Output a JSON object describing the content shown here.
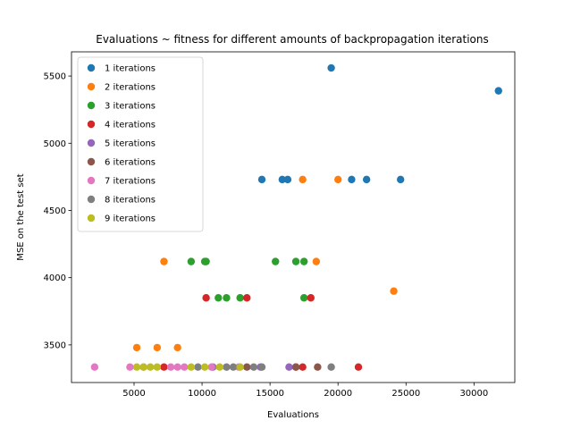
{
  "chart_data": {
    "type": "scatter",
    "title": "Evaluations ~ fitness for different amounts of backpropagation iterations",
    "xlabel": "Evaluations",
    "ylabel": "MSE on the test set",
    "xlim": [
      400,
      33000
    ],
    "ylim": [
      3220,
      5680
    ],
    "xticks": [
      5000,
      10000,
      15000,
      20000,
      25000,
      30000
    ],
    "yticks": [
      3500,
      4000,
      4500,
      5000,
      5500
    ],
    "grid": false,
    "legend_position": "top-left",
    "series": [
      {
        "name": "1 iterations",
        "color": "#1f77b4",
        "points": [
          [
            14400,
            4730
          ],
          [
            15900,
            4730
          ],
          [
            16300,
            4730
          ],
          [
            19500,
            5560
          ],
          [
            21000,
            4730
          ],
          [
            22100,
            4730
          ],
          [
            24600,
            4730
          ],
          [
            31800,
            5390
          ]
        ]
      },
      {
        "name": "2 iterations",
        "color": "#ff7f0e",
        "points": [
          [
            5200,
            3480
          ],
          [
            6700,
            3480
          ],
          [
            8200,
            3480
          ],
          [
            7200,
            4120
          ],
          [
            17400,
            4730
          ],
          [
            20000,
            4730
          ],
          [
            18400,
            4120
          ],
          [
            24100,
            3900
          ]
        ]
      },
      {
        "name": "3 iterations",
        "color": "#2ca02c",
        "points": [
          [
            9200,
            4120
          ],
          [
            10200,
            4120
          ],
          [
            10300,
            4120
          ],
          [
            11200,
            3850
          ],
          [
            11800,
            3850
          ],
          [
            12800,
            3850
          ],
          [
            15400,
            4120
          ],
          [
            16900,
            4120
          ],
          [
            17500,
            4120
          ],
          [
            17500,
            3850
          ]
        ]
      },
      {
        "name": "4 iterations",
        "color": "#d62728",
        "points": [
          [
            7200,
            3335
          ],
          [
            10300,
            3850
          ],
          [
            13300,
            3850
          ],
          [
            16900,
            3335
          ],
          [
            17400,
            3335
          ],
          [
            18000,
            3850
          ],
          [
            21500,
            3335
          ]
        ]
      },
      {
        "name": "5 iterations",
        "color": "#9467bd",
        "points": [
          [
            10800,
            3335
          ],
          [
            14300,
            3335
          ],
          [
            16400,
            3335
          ]
        ]
      },
      {
        "name": "6 iterations",
        "color": "#8c564b",
        "points": [
          [
            13300,
            3335
          ],
          [
            16900,
            3335
          ],
          [
            18500,
            3335
          ]
        ]
      },
      {
        "name": "7 iterations",
        "color": "#e377c2",
        "points": [
          [
            2100,
            3335
          ],
          [
            4700,
            3335
          ],
          [
            5700,
            3335
          ],
          [
            7700,
            3335
          ],
          [
            8200,
            3335
          ],
          [
            8700,
            3335
          ],
          [
            10700,
            3335
          ],
          [
            12700,
            3335
          ]
        ]
      },
      {
        "name": "8 iterations",
        "color": "#7f7f7f",
        "points": [
          [
            9700,
            3335
          ],
          [
            11800,
            3335
          ],
          [
            12300,
            3335
          ],
          [
            13800,
            3335
          ],
          [
            14400,
            3335
          ],
          [
            19500,
            3335
          ]
        ]
      },
      {
        "name": "9 iterations",
        "color": "#bcbd22",
        "points": [
          [
            5200,
            3335
          ],
          [
            5700,
            3335
          ],
          [
            6200,
            3335
          ],
          [
            6700,
            3335
          ],
          [
            9200,
            3335
          ],
          [
            10200,
            3335
          ],
          [
            11300,
            3335
          ],
          [
            12800,
            3335
          ]
        ]
      }
    ]
  }
}
